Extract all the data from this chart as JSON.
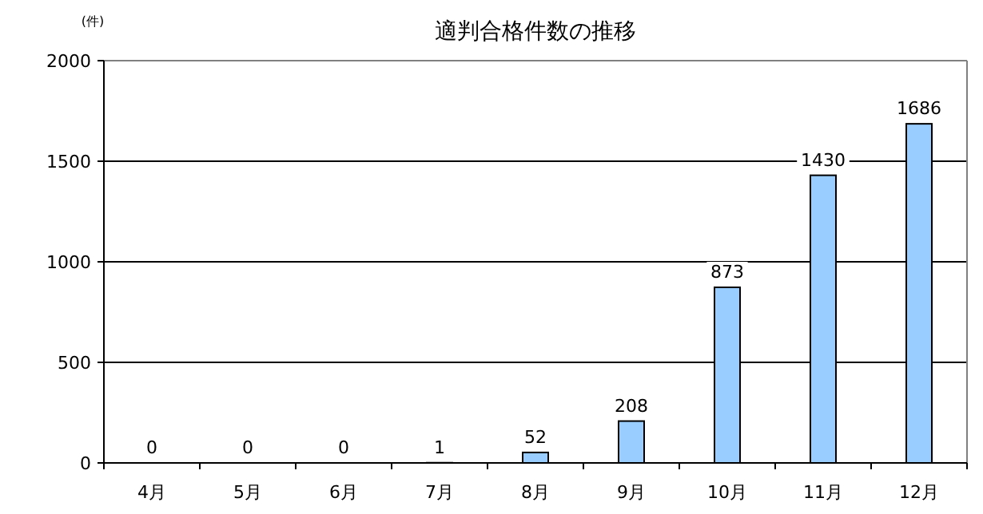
{
  "chart_data": {
    "type": "bar",
    "title": "適判合格件数の推移",
    "ylabel": "(件)",
    "categories": [
      "4月",
      "5月",
      "6月",
      "7月",
      "8月",
      "9月",
      "10月",
      "11月",
      "12月"
    ],
    "values": [
      0,
      0,
      0,
      1,
      52,
      208,
      873,
      1430,
      1686
    ],
    "color": "#99ccff",
    "ylim": [
      0,
      2000
    ],
    "yticks": [
      0,
      500,
      1000,
      1500,
      2000
    ],
    "grid": "y",
    "data_labels": true
  }
}
